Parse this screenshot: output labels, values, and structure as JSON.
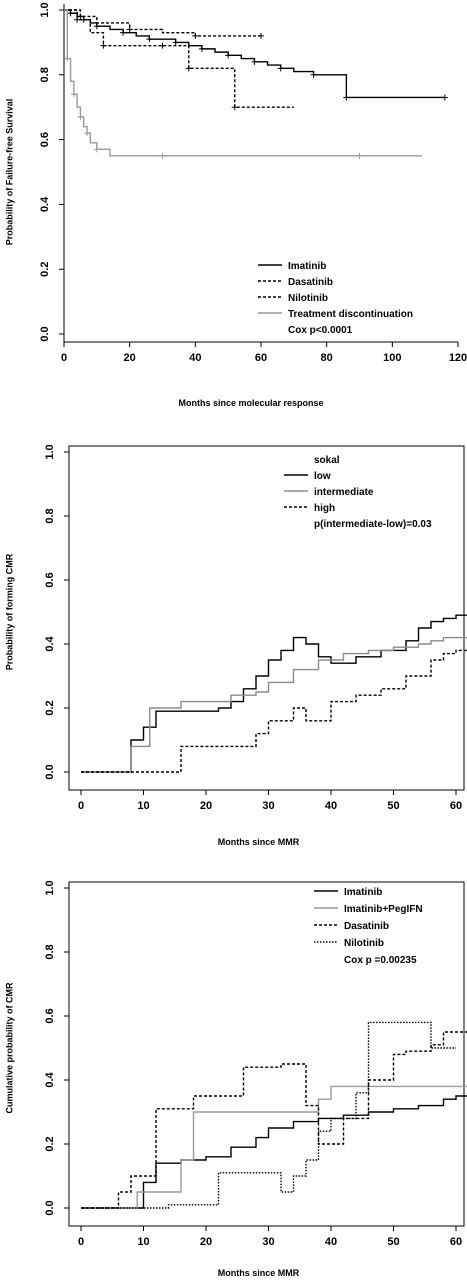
{
  "chart_data": [
    {
      "type": "line",
      "xlabel": "Months since molecular response",
      "ylabel": "Probability of Failure-free Survival",
      "xlim": [
        0,
        120
      ],
      "ylim": [
        0,
        1.0
      ],
      "xticks": [
        "0",
        "20",
        "40",
        "60",
        "80",
        "100",
        "120"
      ],
      "yticks": [
        "0.0",
        "0.2",
        "0.4",
        "0.6",
        "0.8",
        "1.0"
      ],
      "legend": {
        "position": "bottom-right",
        "entries": [
          "Imatinib",
          "Dasatinib",
          "Nilotinib",
          "Treatment discontinuation",
          "Cox p<0.0001"
        ]
      },
      "series": [
        {
          "name": "Imatinib",
          "style": "solid",
          "color": "#000000",
          "x": [
            0,
            2,
            4,
            6,
            8,
            10,
            14,
            18,
            22,
            26,
            30,
            34,
            38,
            42,
            46,
            50,
            54,
            58,
            62,
            66,
            70,
            76,
            84,
            86,
            100,
            116
          ],
          "y": [
            1.0,
            0.99,
            0.98,
            0.97,
            0.96,
            0.95,
            0.94,
            0.93,
            0.92,
            0.91,
            0.91,
            0.9,
            0.89,
            0.88,
            0.87,
            0.86,
            0.85,
            0.84,
            0.83,
            0.82,
            0.81,
            0.8,
            0.8,
            0.73,
            0.73,
            0.73
          ]
        },
        {
          "name": "Dasatinib",
          "style": "dashed",
          "color": "#000000",
          "x": [
            0,
            4,
            8,
            12,
            20,
            30,
            36,
            38,
            50,
            52,
            70
          ],
          "y": [
            1.0,
            0.97,
            0.93,
            0.89,
            0.89,
            0.89,
            0.89,
            0.82,
            0.82,
            0.7,
            0.7
          ]
        },
        {
          "name": "Nilotinib",
          "style": "dashed",
          "color": "#000000",
          "x": [
            0,
            5,
            10,
            20,
            30,
            40,
            45,
            60
          ],
          "y": [
            1.0,
            0.98,
            0.96,
            0.94,
            0.93,
            0.92,
            0.92,
            0.92
          ]
        },
        {
          "name": "Treatment discontinuation",
          "style": "solid",
          "color": "#9a9a9a",
          "x": [
            0,
            1,
            2,
            3,
            4,
            5,
            6,
            7,
            8,
            10,
            14,
            30,
            60,
            90,
            109
          ],
          "y": [
            1.0,
            0.85,
            0.78,
            0.74,
            0.7,
            0.67,
            0.64,
            0.62,
            0.59,
            0.57,
            0.55,
            0.55,
            0.55,
            0.55,
            0.55
          ]
        }
      ]
    },
    {
      "type": "line",
      "xlabel": "Months since MMR",
      "ylabel": "Probability of forming CMR",
      "xlim": [
        0,
        60
      ],
      "ylim": [
        0,
        1.0
      ],
      "xticks": [
        "0",
        "10",
        "20",
        "30",
        "40",
        "50",
        "60"
      ],
      "yticks": [
        "0.0",
        "0.2",
        "0.4",
        "0.6",
        "0.8",
        "1.0"
      ],
      "legend": {
        "position": "top-right",
        "entries": [
          "sokal",
          "low",
          "intermediate",
          "high",
          "p(intermediate-low)=0.03"
        ]
      },
      "series": [
        {
          "name": "low",
          "style": "solid",
          "color": "#000000",
          "x": [
            0,
            6,
            8,
            10,
            12,
            20,
            22,
            24,
            26,
            28,
            30,
            32,
            34,
            36,
            38,
            40,
            44,
            48,
            52,
            54,
            56,
            58,
            60,
            62
          ],
          "y": [
            0,
            0,
            0.1,
            0.14,
            0.19,
            0.19,
            0.2,
            0.22,
            0.26,
            0.3,
            0.35,
            0.38,
            0.42,
            0.4,
            0.36,
            0.34,
            0.36,
            0.38,
            0.41,
            0.45,
            0.47,
            0.48,
            0.49,
            0.49
          ]
        },
        {
          "name": "intermediate",
          "style": "solid",
          "color": "#8a8a8a",
          "x": [
            0,
            6,
            8,
            11,
            16,
            20,
            24,
            28,
            30,
            34,
            38,
            42,
            46,
            50,
            54,
            56,
            58,
            60,
            62
          ],
          "y": [
            0,
            0,
            0.08,
            0.2,
            0.22,
            0.22,
            0.24,
            0.25,
            0.28,
            0.32,
            0.35,
            0.37,
            0.38,
            0.39,
            0.4,
            0.41,
            0.42,
            0.42,
            0.42
          ]
        },
        {
          "name": "high",
          "style": "dashed",
          "color": "#000000",
          "x": [
            0,
            16,
            22,
            28,
            30,
            34,
            36,
            40,
            44,
            48,
            52,
            56,
            58,
            60,
            62
          ],
          "y": [
            0,
            0.08,
            0.08,
            0.12,
            0.16,
            0.2,
            0.16,
            0.22,
            0.24,
            0.26,
            0.3,
            0.35,
            0.37,
            0.38,
            0.38
          ]
        }
      ]
    },
    {
      "type": "line",
      "xlabel": "Months since MMR",
      "ylabel": "Cumulative probability of CMR",
      "xlim": [
        0,
        60
      ],
      "ylim": [
        0,
        1.0
      ],
      "xticks": [
        "0",
        "10",
        "20",
        "30",
        "40",
        "50",
        "60"
      ],
      "yticks": [
        "0.0",
        "0.2",
        "0.4",
        "0.6",
        "0.8",
        "1.0"
      ],
      "legend": {
        "position": "top-right",
        "entries": [
          "Imatinib",
          "Imatinib+PegIFN",
          "Dasatinib",
          "Nilotinib",
          "Cox p =0.00235"
        ]
      },
      "series": [
        {
          "name": "Imatinib",
          "style": "solid",
          "color": "#000000",
          "x": [
            0,
            9,
            10,
            12,
            16,
            20,
            24,
            28,
            30,
            34,
            38,
            42,
            46,
            50,
            54,
            58,
            60,
            62
          ],
          "y": [
            0,
            0,
            0.08,
            0.14,
            0.15,
            0.16,
            0.19,
            0.22,
            0.25,
            0.27,
            0.28,
            0.29,
            0.3,
            0.31,
            0.32,
            0.34,
            0.35,
            0.35
          ]
        },
        {
          "name": "Imatinib+PegIFN",
          "style": "solid",
          "color": "#9a9a9a",
          "x": [
            0,
            9,
            12,
            16,
            18,
            28,
            38,
            40,
            48,
            62
          ],
          "y": [
            0,
            0.05,
            0.05,
            0.15,
            0.3,
            0.3,
            0.34,
            0.38,
            0.38,
            0.38
          ]
        },
        {
          "name": "Dasatinib",
          "style": "dashed",
          "color": "#000000",
          "x": [
            0,
            6,
            8,
            12,
            18,
            26,
            32,
            36,
            38,
            42,
            46,
            50,
            52,
            56,
            58,
            60,
            62
          ],
          "y": [
            0,
            0.05,
            0.1,
            0.31,
            0.35,
            0.44,
            0.45,
            0.32,
            0.2,
            0.28,
            0.4,
            0.48,
            0.49,
            0.51,
            0.55,
            0.55,
            0.55
          ]
        },
        {
          "name": "Nilotinib",
          "style": "dotted",
          "color": "#000000",
          "x": [
            0,
            9,
            14,
            22,
            28,
            32,
            34,
            36,
            38,
            40,
            44,
            46,
            50,
            54,
            56,
            60
          ],
          "y": [
            0,
            0,
            0.01,
            0.11,
            0.11,
            0.05,
            0.1,
            0.15,
            0.24,
            0.28,
            0.36,
            0.58,
            0.58,
            0.58,
            0.5,
            0.5
          ]
        }
      ]
    }
  ]
}
